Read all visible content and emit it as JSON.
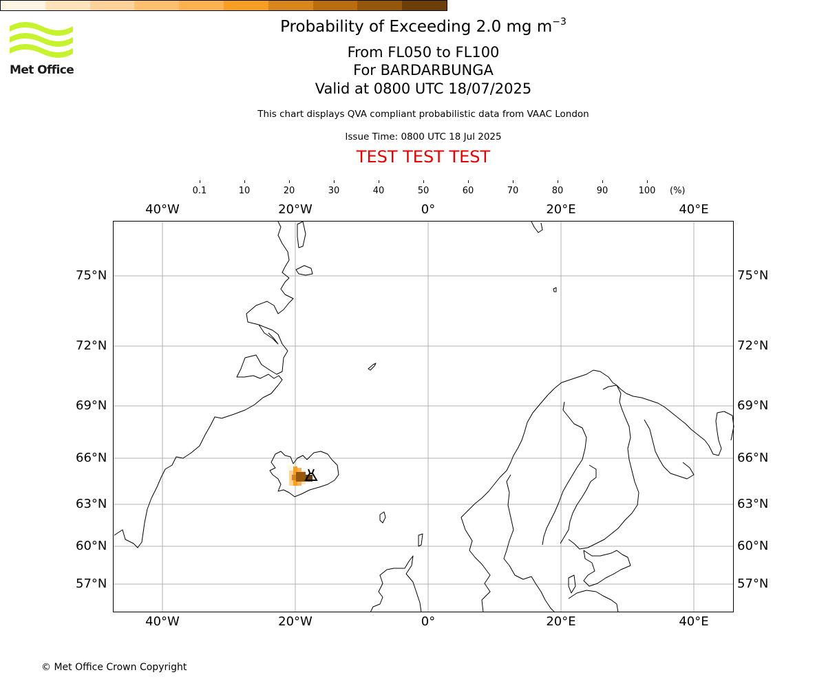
{
  "logo": {
    "text": "Met Office",
    "accent": "#c6f22e"
  },
  "header": {
    "title": "Probability of Exceeding 2.0 mg m",
    "title_sup": "−3",
    "level_range": "From FL050 to FL100",
    "volcano": "For BARDARBUNGA",
    "valid_time": "Valid at 0800 UTC 18/07/2025",
    "description": "This chart displays QVA compliant probabilistic data from VAAC London",
    "issue_time": "Issue Time: 0800 UTC 18 Jul 2025",
    "test_banner": "TEST TEST TEST",
    "test_color": "#e60000"
  },
  "colorbar": {
    "ticks": [
      "0.1",
      "10",
      "20",
      "30",
      "40",
      "50",
      "60",
      "70",
      "80",
      "90",
      "100"
    ],
    "unit": "(%)",
    "colors": [
      "#fff6e6",
      "#ffe3bd",
      "#ffd399",
      "#ffc06f",
      "#fdb14f",
      "#f79f22",
      "#d6861a",
      "#b96d0e",
      "#95570b",
      "#6b3e0a"
    ]
  },
  "map": {
    "lon_labels": [
      "40°W",
      "20°W",
      "0°",
      "20°E",
      "40°E"
    ],
    "lat_labels": [
      "75°N",
      "72°N",
      "69°N",
      "66°N",
      "63°N",
      "60°N",
      "57°N"
    ],
    "grid_color": "#b0b0b0",
    "volcano_marker": "volcano-icon"
  },
  "footer": {
    "copyright": "© Met Office Crown Copyright"
  }
}
